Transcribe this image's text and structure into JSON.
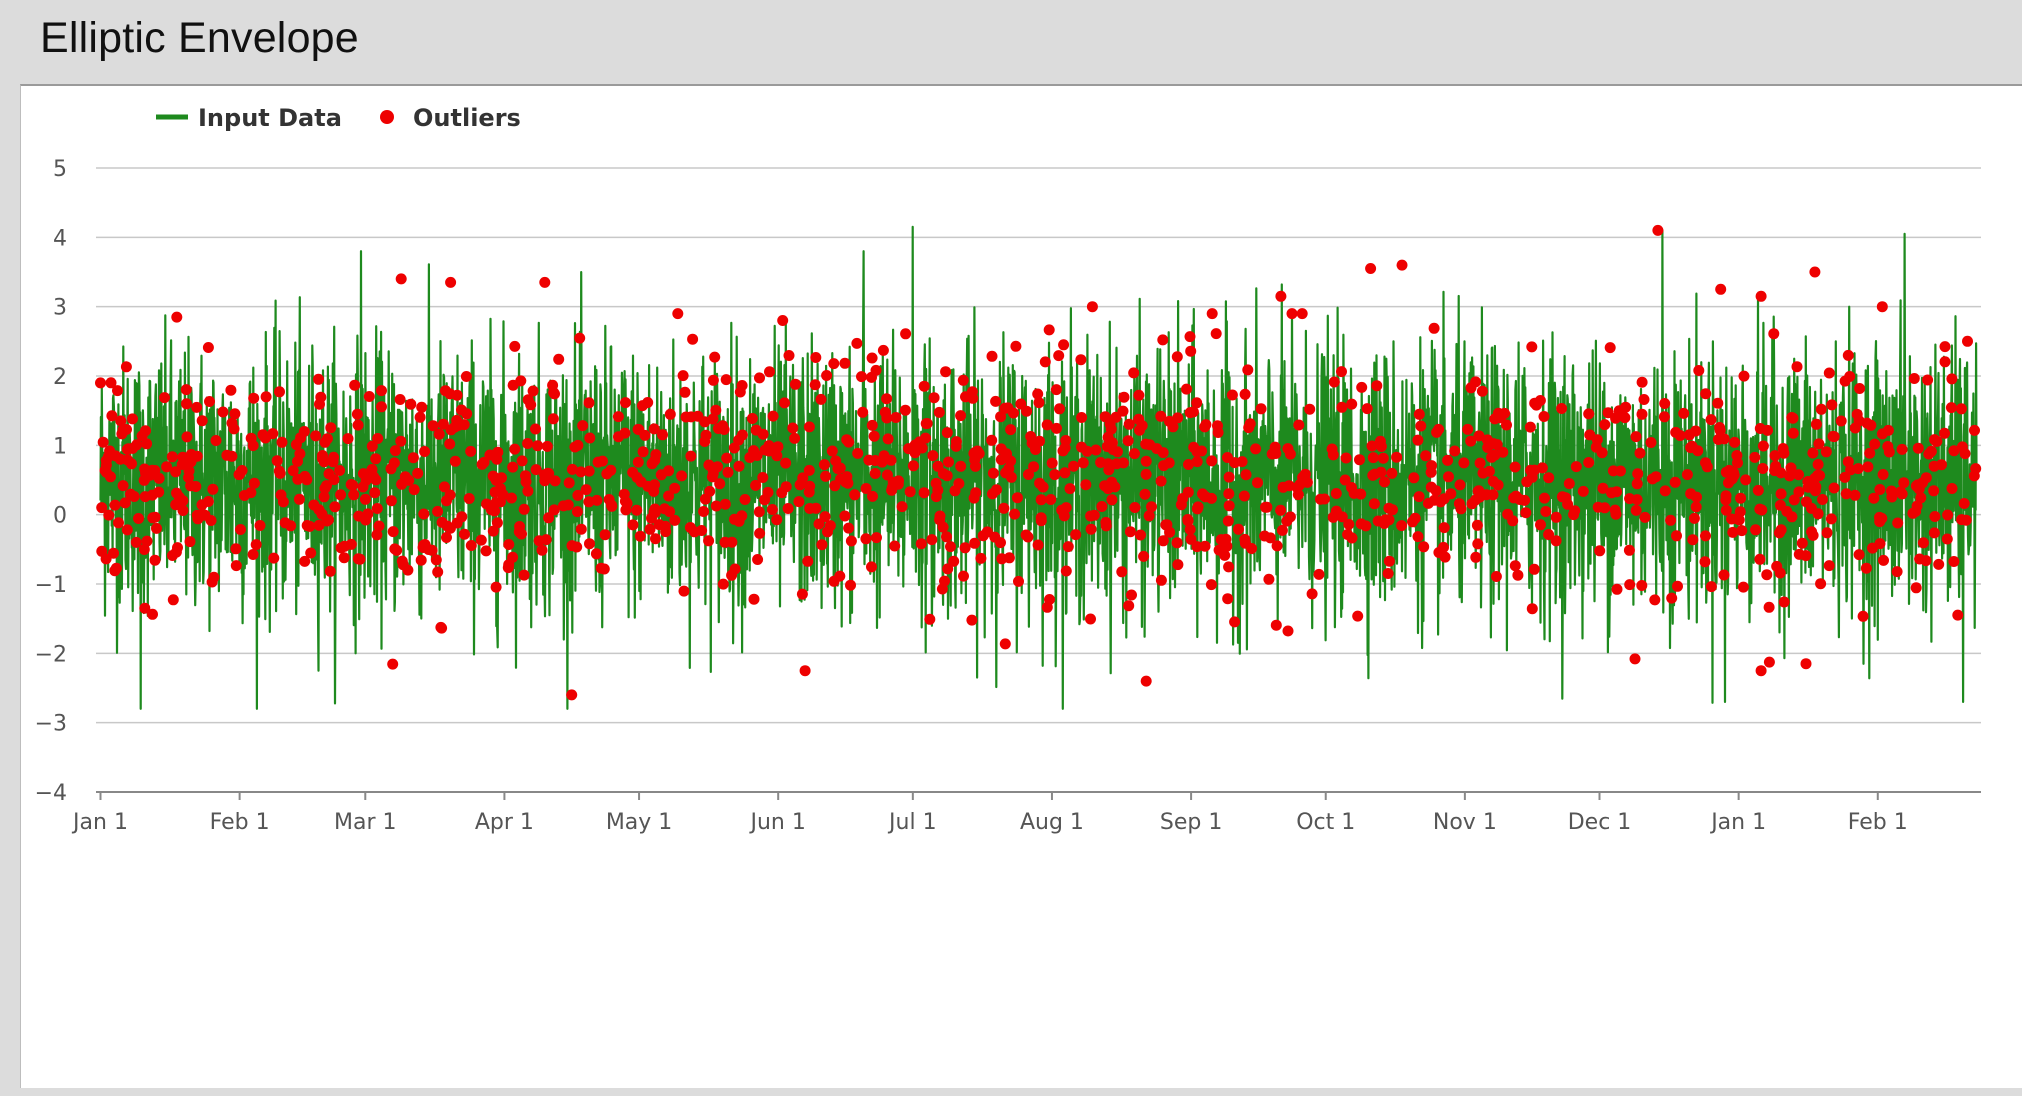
{
  "header": {
    "title": "Elliptic Envelope"
  },
  "colors": {
    "line": "#1e8a1e",
    "outlier": "#ee0000",
    "grid": "#c8c8c8",
    "axis": "#888888"
  },
  "chart_data": {
    "type": "line",
    "title": "Elliptic Envelope",
    "xlabel": "",
    "ylabel": "",
    "ylim": [
      -4,
      5
    ],
    "yticks": [
      -4,
      -3,
      -2,
      -1,
      0,
      1,
      2,
      3,
      4,
      5
    ],
    "yticklabels": [
      "−4",
      "−3",
      "−2",
      "−1",
      "0",
      "1",
      "2",
      "3",
      "4",
      "5"
    ],
    "xlim": [
      "2021-12-31",
      "2023-02-24"
    ],
    "xticks": [
      "2022-01-01",
      "2022-02-01",
      "2022-03-01",
      "2022-04-01",
      "2022-05-01",
      "2022-06-01",
      "2022-07-01",
      "2022-08-01",
      "2022-09-01",
      "2022-10-01",
      "2022-11-01",
      "2022-12-01",
      "2023-01-01",
      "2023-02-01"
    ],
    "xticklabels": [
      "Jan 1",
      "Feb 1",
      "Mar 1",
      "Apr 1",
      "May 1",
      "Jun 1",
      "Jul 1",
      "Aug 1",
      "Sep 1",
      "Oct 1",
      "Nov 1",
      "Dec 1",
      "Jan 1",
      "Feb 1"
    ],
    "grid": true,
    "legend": {
      "placement": "top-left",
      "entries": [
        "Input Data",
        "Outliers"
      ]
    },
    "series": [
      {
        "name": "Input Data",
        "type": "line",
        "sampling": "hourly, 2022-01-01 to 2023-02-23",
        "approx_mean": 0.5,
        "approx_range": [
          -2.8,
          4.2
        ],
        "notable_points": [
          {
            "x": "2022-01-10",
            "y": -2.8
          },
          {
            "x": "2022-02-28",
            "y": 3.8
          },
          {
            "x": "2022-06-20",
            "y": 3.8
          },
          {
            "x": "2022-07-01",
            "y": 4.15
          },
          {
            "x": "2022-12-15",
            "y": 4.1
          },
          {
            "x": "2023-02-07",
            "y": 4.05
          },
          {
            "x": "2022-12-29",
            "y": -2.7
          },
          {
            "x": "2023-02-20",
            "y": -2.7
          }
        ]
      },
      {
        "name": "Outliers",
        "type": "scatter",
        "count_approx": 1300,
        "notable_points": [
          {
            "x": "2022-01-01",
            "y": 1.9
          },
          {
            "x": "2022-01-18",
            "y": 2.85
          },
          {
            "x": "2022-03-09",
            "y": 3.4
          },
          {
            "x": "2022-03-20",
            "y": 3.35
          },
          {
            "x": "2022-04-10",
            "y": 3.35
          },
          {
            "x": "2022-04-16",
            "y": -2.6
          },
          {
            "x": "2022-06-02",
            "y": 2.8
          },
          {
            "x": "2022-06-07",
            "y": -2.25
          },
          {
            "x": "2022-08-10",
            "y": 3.0
          },
          {
            "x": "2022-08-22",
            "y": -2.4
          },
          {
            "x": "2022-09-21",
            "y": 3.15
          },
          {
            "x": "2022-10-11",
            "y": 3.55
          },
          {
            "x": "2022-10-18",
            "y": 3.6
          },
          {
            "x": "2022-12-14",
            "y": 4.1
          },
          {
            "x": "2022-12-28",
            "y": 3.25
          },
          {
            "x": "2023-01-06",
            "y": 3.15
          },
          {
            "x": "2023-01-06",
            "y": -2.25
          },
          {
            "x": "2023-01-16",
            "y": -2.15
          },
          {
            "x": "2023-01-18",
            "y": 3.5
          },
          {
            "x": "2023-02-02",
            "y": 3.0
          },
          {
            "x": "2023-02-21",
            "y": 2.5
          }
        ]
      }
    ]
  }
}
